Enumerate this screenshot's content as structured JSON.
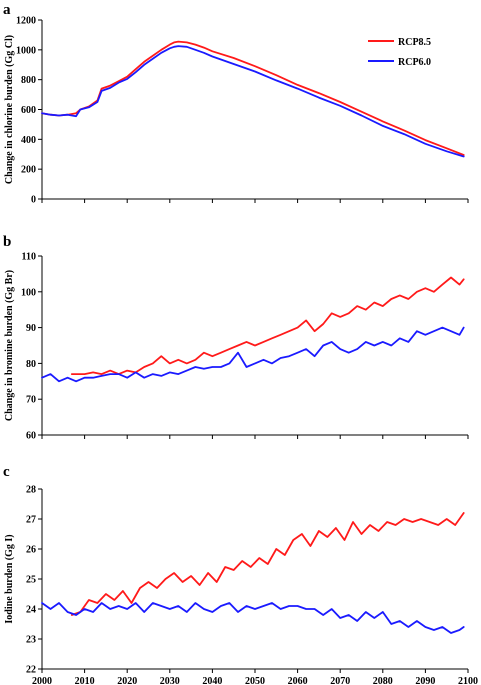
{
  "colors": {
    "rcp85": "#ff1a1a",
    "rcp60": "#1a1aff",
    "axis": "#000000"
  },
  "chart_data": [
    {
      "panel": "a",
      "type": "line",
      "ylabel": "Change in chlorine burden (Gg Cl)",
      "ylim": [
        0,
        1200
      ],
      "yticks": [
        0,
        200,
        400,
        600,
        800,
        1000,
        1200
      ],
      "xlim": [
        2000,
        2100
      ],
      "legend": {
        "placement": "top-right",
        "entries": [
          "RCP8.5",
          "RCP6.0"
        ]
      },
      "series": [
        {
          "name": "RCP8.5",
          "color": "#ff1a1a",
          "x": [
            2000,
            2002,
            2004,
            2006,
            2008,
            2009,
            2011,
            2013,
            2014,
            2016,
            2018,
            2020,
            2022,
            2024,
            2026,
            2028,
            2030,
            2031,
            2032,
            2034,
            2036,
            2038,
            2040,
            2045,
            2050,
            2055,
            2060,
            2065,
            2070,
            2075,
            2080,
            2085,
            2090,
            2095,
            2099
          ],
          "values": [
            575,
            565,
            560,
            565,
            575,
            600,
            620,
            660,
            740,
            760,
            790,
            820,
            870,
            920,
            960,
            1000,
            1035,
            1050,
            1055,
            1050,
            1035,
            1015,
            990,
            945,
            890,
            830,
            765,
            710,
            650,
            585,
            520,
            460,
            395,
            340,
            295
          ]
        },
        {
          "name": "RCP6.0",
          "color": "#1a1aff",
          "x": [
            2000,
            2002,
            2004,
            2006,
            2008,
            2009,
            2011,
            2013,
            2014,
            2016,
            2018,
            2020,
            2022,
            2024,
            2026,
            2028,
            2030,
            2031,
            2032,
            2034,
            2036,
            2038,
            2040,
            2045,
            2050,
            2055,
            2060,
            2065,
            2070,
            2075,
            2080,
            2085,
            2090,
            2095,
            2099
          ],
          "values": [
            575,
            565,
            560,
            565,
            555,
            600,
            615,
            650,
            725,
            745,
            780,
            805,
            850,
            900,
            940,
            980,
            1010,
            1020,
            1025,
            1020,
            1000,
            980,
            955,
            905,
            855,
            795,
            740,
            680,
            625,
            560,
            490,
            435,
            370,
            320,
            285
          ]
        }
      ]
    },
    {
      "panel": "b",
      "type": "line",
      "ylabel": "Change in bromine burden (Gg Br)",
      "ylim": [
        60,
        110
      ],
      "yticks": [
        60,
        70,
        80,
        90,
        100,
        110
      ],
      "xlim": [
        2000,
        2100
      ],
      "series": [
        {
          "name": "RCP8.5",
          "color": "#ff1a1a",
          "x": [
            2007,
            2010,
            2012,
            2014,
            2016,
            2018,
            2020,
            2022,
            2024,
            2026,
            2028,
            2030,
            2032,
            2034,
            2036,
            2038,
            2040,
            2042,
            2044,
            2046,
            2048,
            2050,
            2052,
            2054,
            2056,
            2058,
            2060,
            2062,
            2064,
            2066,
            2068,
            2070,
            2072,
            2074,
            2076,
            2078,
            2080,
            2082,
            2084,
            2086,
            2088,
            2090,
            2092,
            2094,
            2096,
            2098,
            2099
          ],
          "values": [
            77,
            77,
            77.5,
            77,
            78,
            77,
            78,
            77.5,
            79,
            80,
            82,
            80,
            81,
            80,
            81,
            83,
            82,
            83,
            84,
            85,
            86,
            85,
            86,
            87,
            88,
            89,
            90,
            92,
            89,
            91,
            94,
            93,
            94,
            96,
            95,
            97,
            96,
            98,
            99,
            98,
            100,
            101,
            100,
            102,
            104,
            102,
            103.5
          ]
        },
        {
          "name": "RCP6.0",
          "color": "#1a1aff",
          "x": [
            2000,
            2002,
            2004,
            2006,
            2008,
            2010,
            2012,
            2014,
            2016,
            2018,
            2020,
            2022,
            2024,
            2026,
            2028,
            2030,
            2032,
            2034,
            2036,
            2038,
            2040,
            2042,
            2044,
            2046,
            2048,
            2050,
            2052,
            2054,
            2056,
            2058,
            2060,
            2062,
            2064,
            2066,
            2068,
            2070,
            2072,
            2074,
            2076,
            2078,
            2080,
            2082,
            2084,
            2086,
            2088,
            2090,
            2092,
            2094,
            2096,
            2098,
            2099
          ],
          "values": [
            76,
            77,
            75,
            76,
            75,
            76,
            76,
            76.5,
            77,
            77,
            76,
            77.5,
            76,
            77,
            76.5,
            77.5,
            77,
            78,
            79,
            78.5,
            79,
            79,
            80,
            83,
            79,
            80,
            81,
            80,
            81.5,
            82,
            83,
            84,
            82,
            85,
            86,
            84,
            83,
            84,
            86,
            85,
            86,
            85,
            87,
            86,
            89,
            88,
            89,
            90,
            89,
            88,
            90
          ]
        }
      ]
    },
    {
      "panel": "c",
      "type": "line",
      "ylabel": "Iodine burden (Gg I)",
      "ylim": [
        22,
        28
      ],
      "yticks": [
        22,
        23,
        24,
        25,
        26,
        27,
        28
      ],
      "xlim": [
        2000,
        2100
      ],
      "xticks": [
        2000,
        2010,
        2020,
        2030,
        2040,
        2050,
        2060,
        2070,
        2080,
        2090,
        2100
      ],
      "series": [
        {
          "name": "RCP8.5",
          "color": "#ff1a1a",
          "x": [
            2007,
            2009,
            2011,
            2013,
            2015,
            2017,
            2019,
            2021,
            2023,
            2025,
            2027,
            2029,
            2031,
            2033,
            2035,
            2037,
            2039,
            2041,
            2043,
            2045,
            2047,
            2049,
            2051,
            2053,
            2055,
            2057,
            2059,
            2061,
            2063,
            2065,
            2067,
            2069,
            2071,
            2073,
            2075,
            2077,
            2079,
            2081,
            2083,
            2085,
            2087,
            2089,
            2091,
            2093,
            2095,
            2097,
            2099
          ],
          "values": [
            23.8,
            23.9,
            24.3,
            24.2,
            24.5,
            24.3,
            24.6,
            24.2,
            24.7,
            24.9,
            24.7,
            25.0,
            25.2,
            24.9,
            25.1,
            24.8,
            25.2,
            24.9,
            25.4,
            25.3,
            25.6,
            25.4,
            25.7,
            25.5,
            26.0,
            25.8,
            26.3,
            26.5,
            26.1,
            26.6,
            26.4,
            26.7,
            26.3,
            26.9,
            26.5,
            26.8,
            26.6,
            26.9,
            26.8,
            27.0,
            26.9,
            27.0,
            26.9,
            26.8,
            27.0,
            26.8,
            27.2
          ]
        },
        {
          "name": "RCP6.0",
          "color": "#1a1aff",
          "x": [
            2000,
            2002,
            2004,
            2006,
            2008,
            2010,
            2012,
            2014,
            2016,
            2018,
            2020,
            2022,
            2024,
            2026,
            2028,
            2030,
            2032,
            2034,
            2036,
            2038,
            2040,
            2042,
            2044,
            2046,
            2048,
            2050,
            2052,
            2054,
            2056,
            2058,
            2060,
            2062,
            2064,
            2066,
            2068,
            2070,
            2072,
            2074,
            2076,
            2078,
            2080,
            2082,
            2084,
            2086,
            2088,
            2090,
            2092,
            2094,
            2096,
            2098,
            2099
          ],
          "values": [
            24.2,
            24.0,
            24.2,
            23.9,
            23.8,
            24.0,
            23.9,
            24.2,
            24.0,
            24.1,
            24.0,
            24.2,
            23.9,
            24.2,
            24.1,
            24.0,
            24.1,
            23.9,
            24.2,
            24.0,
            23.9,
            24.1,
            24.2,
            23.9,
            24.1,
            24.0,
            24.1,
            24.2,
            24.0,
            24.1,
            24.1,
            24.0,
            24.0,
            23.8,
            24.0,
            23.7,
            23.8,
            23.6,
            23.9,
            23.7,
            23.9,
            23.5,
            23.6,
            23.4,
            23.6,
            23.4,
            23.3,
            23.4,
            23.2,
            23.3,
            23.4
          ]
        }
      ]
    }
  ]
}
